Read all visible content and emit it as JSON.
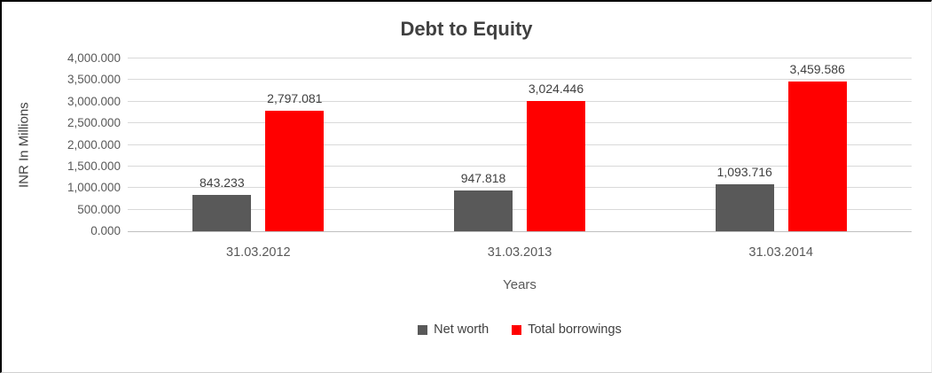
{
  "chart_data": {
    "type": "bar",
    "title": "Debt to Equity",
    "xlabel": "Years",
    "ylabel": "INR In Millions",
    "ylim": [
      0,
      4000
    ],
    "ytick_step": 500,
    "ytick_labels": [
      "0.000",
      "500.000",
      "1,000.000",
      "1,500.000",
      "2,000.000",
      "2,500.000",
      "3,000.000",
      "3,500.000",
      "4,000.000"
    ],
    "categories": [
      "31.03.2012",
      "31.03.2013",
      "31.03.2014"
    ],
    "series": [
      {
        "name": "Net worth",
        "color": "#595959",
        "values": [
          843.233,
          947.818,
          1093.716
        ],
        "labels": [
          "843.233",
          "947.818",
          "1,093.716"
        ]
      },
      {
        "name": "Total borrowings",
        "color": "#ff0000",
        "values": [
          2797.081,
          3024.446,
          3459.586
        ],
        "labels": [
          "2,797.081",
          "3,024.446",
          "3,459.586"
        ]
      }
    ],
    "grid": true,
    "legend_position": "bottom"
  }
}
